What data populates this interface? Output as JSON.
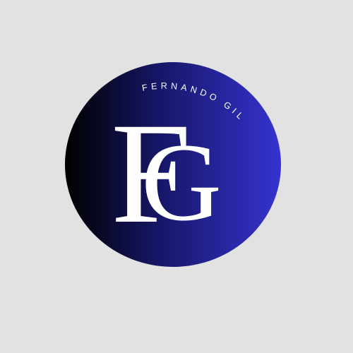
{
  "logo": {
    "monogram_first": "F",
    "monogram_second": "G",
    "brand_name": "FERNANDO GIL"
  },
  "colors": {
    "background": "#e2e2e2",
    "gradient_start": "#000000",
    "gradient_mid": "#17176a",
    "gradient_end": "#3533cf",
    "text": "#ffffff"
  }
}
